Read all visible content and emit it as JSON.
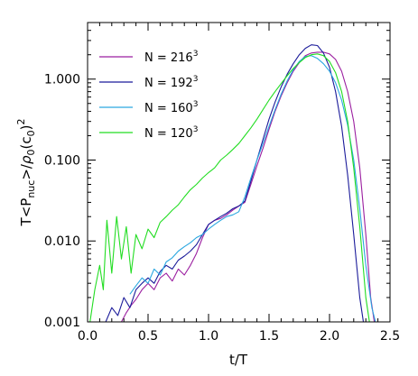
{
  "chart_data": {
    "type": "line",
    "title": "",
    "xlabel": "t/T",
    "ylabel_parts": {
      "lead": "T<P",
      "lead_sub": "nuc",
      "mid": ">/",
      "rho": "ρ",
      "rho_sub": "0",
      "tail": "(c",
      "tail_sub": "0",
      "close": ")",
      "power": "2"
    },
    "x_range": [
      0.0,
      2.5
    ],
    "y_range": [
      0.001,
      5.0
    ],
    "y_scale": "log",
    "x_ticks": [
      {
        "value": 0.0,
        "label": "0.0"
      },
      {
        "value": 0.5,
        "label": "0.5"
      },
      {
        "value": 1.0,
        "label": "1.0"
      },
      {
        "value": 1.5,
        "label": "1.5"
      },
      {
        "value": 2.0,
        "label": "2.0"
      },
      {
        "value": 2.5,
        "label": "2.5"
      }
    ],
    "y_ticks": [
      {
        "value": 0.001,
        "label": "0.001"
      },
      {
        "value": 0.01,
        "label": "0.010"
      },
      {
        "value": 0.1,
        "label": "0.100"
      },
      {
        "value": 1.0,
        "label": "1.000"
      }
    ],
    "grid": false,
    "legend_position": "top-left",
    "series": [
      {
        "name": "N = 216³",
        "label_base": "N = 216",
        "label_power": "3",
        "color": "#9b1fa0",
        "x": [
          0.28,
          0.32,
          0.36,
          0.4,
          0.45,
          0.5,
          0.55,
          0.6,
          0.65,
          0.7,
          0.75,
          0.8,
          0.85,
          0.9,
          0.95,
          1.0,
          1.05,
          1.1,
          1.15,
          1.2,
          1.25,
          1.3,
          1.35,
          1.4,
          1.45,
          1.5,
          1.55,
          1.6,
          1.65,
          1.7,
          1.75,
          1.8,
          1.85,
          1.9,
          1.95,
          2.0,
          2.05,
          2.1,
          2.15,
          2.2,
          2.25,
          2.3,
          2.34,
          2.37
        ],
        "y": [
          0.001,
          0.0013,
          0.0016,
          0.0019,
          0.0025,
          0.003,
          0.0025,
          0.0035,
          0.004,
          0.0032,
          0.0045,
          0.0038,
          0.005,
          0.007,
          0.011,
          0.016,
          0.018,
          0.019,
          0.021,
          0.024,
          0.027,
          0.03,
          0.05,
          0.085,
          0.14,
          0.24,
          0.4,
          0.62,
          0.9,
          1.25,
          1.6,
          1.95,
          2.1,
          2.15,
          2.15,
          2.05,
          1.75,
          1.25,
          0.7,
          0.3,
          0.08,
          0.012,
          0.002,
          0.001
        ]
      },
      {
        "name": "N = 192³",
        "label_base": "N = 192",
        "label_power": "3",
        "color": "#1b1b9a",
        "x": [
          0.15,
          0.2,
          0.25,
          0.3,
          0.35,
          0.4,
          0.45,
          0.5,
          0.55,
          0.6,
          0.65,
          0.7,
          0.75,
          0.8,
          0.85,
          0.9,
          0.95,
          1.0,
          1.05,
          1.1,
          1.15,
          1.2,
          1.25,
          1.3,
          1.35,
          1.4,
          1.45,
          1.5,
          1.55,
          1.6,
          1.65,
          1.7,
          1.75,
          1.8,
          1.85,
          1.9,
          1.95,
          2.0,
          2.05,
          2.1,
          2.15,
          2.2,
          2.25,
          2.28
        ],
        "y": [
          0.001,
          0.0015,
          0.0012,
          0.002,
          0.0015,
          0.0025,
          0.003,
          0.0035,
          0.003,
          0.0042,
          0.005,
          0.0045,
          0.0058,
          0.0065,
          0.0075,
          0.009,
          0.012,
          0.016,
          0.018,
          0.02,
          0.022,
          0.025,
          0.027,
          0.031,
          0.055,
          0.1,
          0.18,
          0.32,
          0.52,
          0.8,
          1.15,
          1.55,
          2.0,
          2.4,
          2.65,
          2.6,
          2.1,
          1.4,
          0.7,
          0.26,
          0.065,
          0.012,
          0.002,
          0.001
        ]
      },
      {
        "name": "N = 160³",
        "label_base": "N = 160",
        "label_power": "3",
        "color": "#2aa7e0",
        "x": [
          0.35,
          0.4,
          0.45,
          0.5,
          0.55,
          0.6,
          0.65,
          0.7,
          0.75,
          0.8,
          0.85,
          0.9,
          0.95,
          1.0,
          1.05,
          1.1,
          1.15,
          1.2,
          1.25,
          1.3,
          1.35,
          1.4,
          1.45,
          1.5,
          1.55,
          1.6,
          1.65,
          1.7,
          1.75,
          1.8,
          1.85,
          1.9,
          1.95,
          2.0,
          2.05,
          2.1,
          2.15,
          2.2,
          2.25,
          2.3,
          2.35,
          2.38
        ],
        "y": [
          0.0022,
          0.0028,
          0.0035,
          0.003,
          0.0045,
          0.0038,
          0.0055,
          0.0062,
          0.0075,
          0.0085,
          0.0095,
          0.011,
          0.012,
          0.014,
          0.016,
          0.018,
          0.02,
          0.021,
          0.023,
          0.035,
          0.06,
          0.1,
          0.16,
          0.26,
          0.42,
          0.65,
          0.95,
          1.3,
          1.65,
          1.9,
          1.95,
          1.8,
          1.55,
          1.25,
          0.9,
          0.55,
          0.27,
          0.1,
          0.025,
          0.005,
          0.0015,
          0.001
        ]
      },
      {
        "name": "N = 120³",
        "label_base": "N = 120",
        "label_power": "3",
        "color": "#22dd22",
        "x": [
          0.02,
          0.06,
          0.1,
          0.13,
          0.16,
          0.2,
          0.24,
          0.28,
          0.32,
          0.36,
          0.4,
          0.45,
          0.5,
          0.55,
          0.6,
          0.65,
          0.7,
          0.75,
          0.8,
          0.85,
          0.9,
          0.95,
          1.0,
          1.05,
          1.1,
          1.15,
          1.2,
          1.25,
          1.3,
          1.35,
          1.4,
          1.45,
          1.5,
          1.55,
          1.6,
          1.65,
          1.7,
          1.75,
          1.8,
          1.85,
          1.9,
          1.95,
          2.0,
          2.05,
          2.1,
          2.15,
          2.2,
          2.25,
          2.3,
          2.33
        ],
        "y": [
          0.001,
          0.0025,
          0.005,
          0.0025,
          0.018,
          0.004,
          0.02,
          0.006,
          0.015,
          0.004,
          0.012,
          0.008,
          0.014,
          0.011,
          0.017,
          0.02,
          0.024,
          0.028,
          0.035,
          0.043,
          0.05,
          0.06,
          0.07,
          0.08,
          0.1,
          0.115,
          0.135,
          0.16,
          0.2,
          0.25,
          0.32,
          0.42,
          0.55,
          0.7,
          0.88,
          1.1,
          1.35,
          1.6,
          1.85,
          2.0,
          2.05,
          1.95,
          1.65,
          1.2,
          0.7,
          0.3,
          0.08,
          0.015,
          0.002,
          0.001
        ]
      }
    ]
  }
}
